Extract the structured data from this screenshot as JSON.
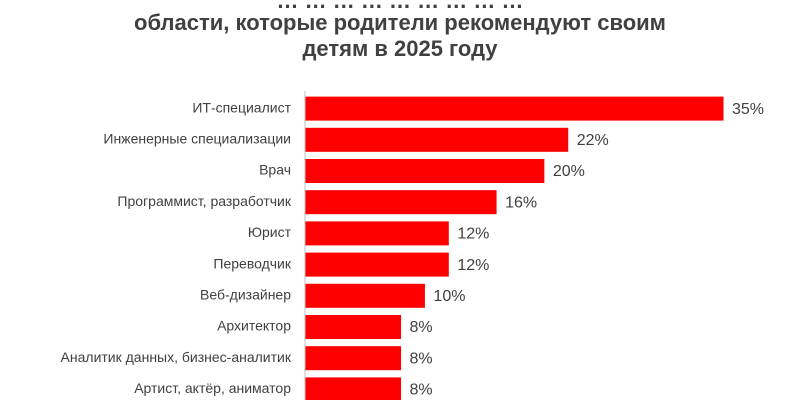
{
  "chart_data": {
    "type": "bar",
    "orientation": "horizontal",
    "title_lines": [
      "… … … … … … … … …",
      "области, которые родители рекомендуют своим",
      "детям в 2025 году"
    ],
    "categories": [
      "ИТ-специалист",
      "Инженерные специализации",
      "Врач",
      "Программист, разработчик",
      "Юрист",
      "Переводчик",
      "Веб-дизайнер",
      "Архитектор",
      "Аналитик данных, бизнес-аналитик",
      "Артист, актёр, аниматор"
    ],
    "values": [
      35,
      22,
      20,
      16,
      12,
      12,
      10,
      8,
      8,
      8
    ],
    "value_labels": [
      "35%",
      "22%",
      "20%",
      "16%",
      "12%",
      "12%",
      "10%",
      "8%",
      "8%",
      "8%"
    ],
    "xlim": [
      0,
      35
    ],
    "unit": "%",
    "grid": false,
    "legend": "none",
    "bar_color": "#ff0000",
    "axis_color": "#bfbfbf",
    "label_color": "#404040",
    "title_color": "#404040"
  }
}
